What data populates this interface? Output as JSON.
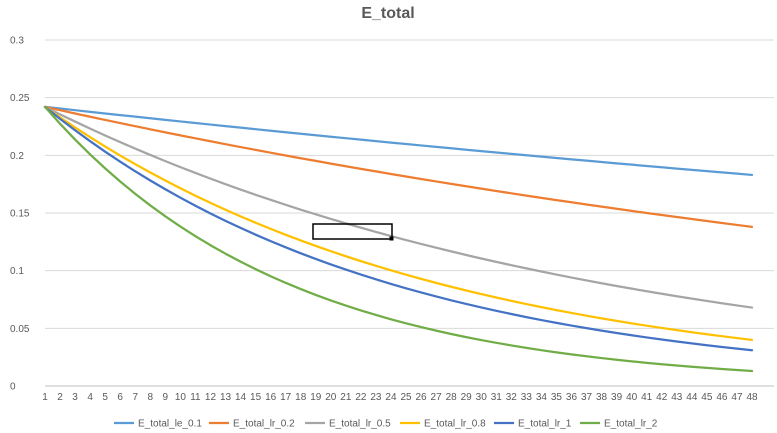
{
  "chart_data": {
    "type": "line",
    "title": "E_total",
    "xlabel": "",
    "ylabel": "",
    "x": [
      1,
      2,
      3,
      4,
      5,
      6,
      7,
      8,
      9,
      10,
      11,
      12,
      13,
      14,
      15,
      16,
      17,
      18,
      19,
      20,
      21,
      22,
      23,
      24,
      25,
      26,
      27,
      28,
      29,
      30,
      31,
      32,
      33,
      34,
      35,
      36,
      37,
      38,
      39,
      40,
      41,
      42,
      43,
      44,
      45,
      46,
      47,
      48
    ],
    "ylim": [
      0,
      0.3
    ],
    "yticks": [
      0,
      0.05,
      0.1,
      0.15,
      0.2,
      0.25,
      0.3
    ],
    "ytick_labels": [
      "0",
      "0.05",
      "0.1",
      "0.15",
      "0.2",
      "0.25",
      "0.3"
    ],
    "grid": true,
    "legend_position": "bottom",
    "series": [
      {
        "name": "E_total_le_0.1",
        "color": "#5B9BD5",
        "start": 0.242,
        "end": 0.183
      },
      {
        "name": "E_total_lr_0.2",
        "color": "#ED7D31",
        "start": 0.242,
        "end": 0.138
      },
      {
        "name": "E_total_lr_0.5",
        "color": "#A5A5A5",
        "start": 0.242,
        "end": 0.068
      },
      {
        "name": "E_total_lr_0.8",
        "color": "#FFC000",
        "start": 0.242,
        "end": 0.04
      },
      {
        "name": "E_total_lr_1",
        "color": "#4472C4",
        "start": 0.242,
        "end": 0.031
      },
      {
        "name": "E_total_lr_2",
        "color": "#70AD47",
        "start": 0.242,
        "end": 0.013
      }
    ],
    "annotation_box": true
  }
}
